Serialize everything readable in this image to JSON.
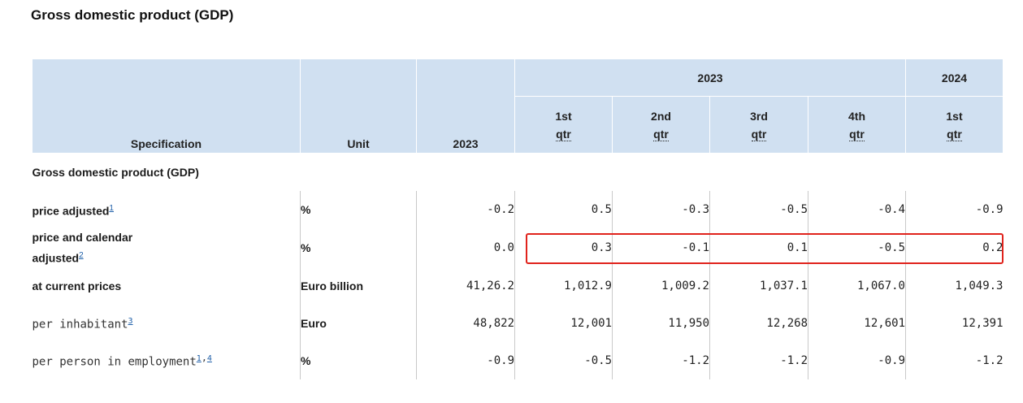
{
  "title": "Gross domestic product (GDP)",
  "header": {
    "spec": "Specification",
    "unit": "Unit",
    "year_col": "2023",
    "group_2023": "2023",
    "group_2024": "2024",
    "q1": {
      "num": "1st",
      "qtr": "qtr"
    },
    "q2": {
      "num": "2nd",
      "qtr": "qtr"
    },
    "q3": {
      "num": "3rd",
      "qtr": "qtr"
    },
    "q4": {
      "num": "4th",
      "qtr": "qtr"
    },
    "q1_2024": {
      "num": "1st",
      "qtr": "qtr"
    }
  },
  "section_label": "Gross domestic product (GDP)",
  "rows": [
    {
      "label": "price adjusted",
      "footnote": "1",
      "unit": "%",
      "values": [
        "-0.2",
        "0.5",
        "-0.3",
        "-0.5",
        "-0.4",
        "-0.9"
      ]
    },
    {
      "label": "price and calendar adjusted",
      "label_line1": "price and calendar",
      "label_line2": "adjusted",
      "footnote": "2",
      "unit": "%",
      "values": [
        "0.0",
        "0.3",
        "-0.1",
        "0.1",
        "-0.5",
        "0.2"
      ]
    },
    {
      "label": "at current prices",
      "unit": "Euro billion",
      "values": [
        "41,26.2",
        "1,012.9",
        "1,009.2",
        "1,037.1",
        "1,067.0",
        "1,049.3"
      ]
    },
    {
      "label": "per inhabitant",
      "footnote": "3",
      "unit": "Euro",
      "values": [
        "48,822",
        "12,001",
        "11,950",
        "12,268",
        "12,601",
        "12,391"
      ]
    },
    {
      "label": "per person in employment",
      "footnote": "1",
      "footnote2": "4",
      "unit": "%",
      "values": [
        "-0.9",
        "-0.5",
        "-1.2",
        "-1.2",
        "-0.9",
        "-1.2"
      ]
    }
  ],
  "colors": {
    "header_bg": "#d0e0f1",
    "highlight": "#e0231c",
    "link": "#1d5ea8"
  }
}
